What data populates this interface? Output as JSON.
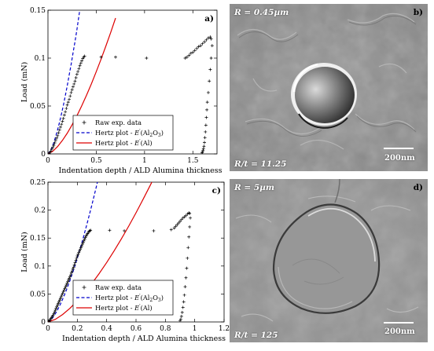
{
  "chart_data": [
    {
      "type": "scatter",
      "panel_label": "a)",
      "xlabel": "Indentation depth / ALD Alumina thickness",
      "ylabel": "Load (mN)",
      "xlim": [
        0,
        1.75
      ],
      "ylim": [
        0,
        0.15
      ],
      "xticks": [
        0,
        0.5,
        1,
        1.5
      ],
      "yticks": [
        0,
        0.05,
        0.1,
        0.15
      ],
      "ytick_labels": [
        "0",
        "0.05",
        "0.1",
        "0.15"
      ],
      "grid": false,
      "legend_position": "bottom-center",
      "series": [
        {
          "name": "Raw exp. data",
          "style": "plus-markers",
          "color": "#000000",
          "x": [
            0.01,
            0.02,
            0.03,
            0.04,
            0.05,
            0.06,
            0.07,
            0.08,
            0.09,
            0.1,
            0.11,
            0.12,
            0.13,
            0.14,
            0.15,
            0.16,
            0.17,
            0.18,
            0.19,
            0.2,
            0.21,
            0.22,
            0.23,
            0.24,
            0.25,
            0.26,
            0.27,
            0.28,
            0.29,
            0.3,
            0.31,
            0.32,
            0.33,
            0.34,
            0.35,
            0.36,
            0.37,
            0.38,
            0.55,
            0.7,
            1.02,
            1.42,
            1.44,
            1.46,
            1.48,
            1.5,
            1.52,
            1.54,
            1.56,
            1.58,
            1.6,
            1.62,
            1.64,
            1.66,
            1.68,
            1.69,
            1.7,
            1.69,
            1.68,
            1.67,
            1.66,
            1.65,
            1.645,
            1.64,
            1.635,
            1.63,
            1.625,
            1.62,
            1.615,
            1.61,
            1.605,
            1.6,
            1.595
          ],
          "y": [
            0.0005,
            0.0015,
            0.003,
            0.005,
            0.007,
            0.009,
            0.0115,
            0.014,
            0.0165,
            0.019,
            0.022,
            0.025,
            0.028,
            0.031,
            0.034,
            0.037,
            0.0405,
            0.044,
            0.0475,
            0.051,
            0.054,
            0.057,
            0.0605,
            0.064,
            0.067,
            0.07,
            0.073,
            0.076,
            0.0795,
            0.083,
            0.086,
            0.089,
            0.092,
            0.0945,
            0.097,
            0.0995,
            0.101,
            0.102,
            0.101,
            0.101,
            0.1,
            0.1,
            0.101,
            0.103,
            0.105,
            0.106,
            0.108,
            0.11,
            0.112,
            0.113,
            0.115,
            0.117,
            0.119,
            0.121,
            0.122,
            0.12,
            0.113,
            0.1,
            0.088,
            0.076,
            0.064,
            0.054,
            0.046,
            0.038,
            0.03,
            0.023,
            0.017,
            0.012,
            0.008,
            0.0055,
            0.0035,
            0.002,
            0.001
          ]
        },
        {
          "name": "Hertz plot - E'(Al2O3)",
          "legend_rich": [
            "Hertz plot - ",
            "E",
            "′",
            "(Al",
            "2",
            "O",
            "3",
            ")"
          ],
          "style": "dashed-line",
          "color": "#0000cc",
          "x": [
            0,
            0.02,
            0.04,
            0.06,
            0.08,
            0.1,
            0.12,
            0.14,
            0.16,
            0.18,
            0.2,
            0.22,
            0.24,
            0.26,
            0.28,
            0.3,
            0.32,
            0.33
          ],
          "y": [
            0,
            0.00027,
            0.00075,
            0.00138,
            0.00213,
            0.00297,
            0.0039,
            0.00492,
            0.00601,
            0.00717,
            0.0084,
            0.0097,
            0.011,
            0.0124,
            0.0138,
            0.0153,
            0.0169,
            0.0177
          ],
          "y_scale": 8.5
        },
        {
          "name": "Hertz plot - E'(Al)",
          "legend_rich": [
            "Hertz plot - ",
            "E",
            "′",
            "(Al)"
          ],
          "style": "solid-line",
          "color": "#dd0000",
          "x": [
            0,
            0.05,
            0.1,
            0.15,
            0.2,
            0.25,
            0.3,
            0.35,
            0.4,
            0.45,
            0.5,
            0.55,
            0.6,
            0.65,
            0.7
          ],
          "y": [
            0,
            0.0027,
            0.0077,
            0.0141,
            0.0217,
            0.0304,
            0.0399,
            0.0503,
            0.0614,
            0.0733,
            0.0858,
            0.099,
            0.1127,
            0.127,
            0.1418
          ]
        }
      ]
    },
    {
      "type": "scatter",
      "panel_label": "c)",
      "xlabel": "Indentation depth / ALD Alumina thickness",
      "ylabel": "Load (mN)",
      "xlim": [
        0,
        1.2
      ],
      "ylim": [
        0,
        0.25
      ],
      "xticks": [
        0,
        0.2,
        0.4,
        0.6,
        0.8,
        1,
        1.2
      ],
      "yticks": [
        0,
        0.05,
        0.1,
        0.15,
        0.2,
        0.25
      ],
      "ytick_labels": [
        "0",
        "0.05",
        "0.1",
        "0.15",
        "0.2",
        "0.25"
      ],
      "grid": false,
      "legend_position": "bottom-left",
      "series": [
        {
          "name": "Raw exp. data",
          "style": "plus-markers",
          "color": "#000000",
          "x": [
            0.005,
            0.01,
            0.015,
            0.02,
            0.025,
            0.03,
            0.035,
            0.04,
            0.045,
            0.05,
            0.055,
            0.06,
            0.065,
            0.07,
            0.075,
            0.08,
            0.085,
            0.09,
            0.095,
            0.1,
            0.105,
            0.11,
            0.115,
            0.12,
            0.125,
            0.13,
            0.135,
            0.14,
            0.145,
            0.15,
            0.155,
            0.16,
            0.165,
            0.17,
            0.175,
            0.18,
            0.185,
            0.19,
            0.195,
            0.2,
            0.205,
            0.21,
            0.215,
            0.22,
            0.225,
            0.23,
            0.235,
            0.24,
            0.245,
            0.25,
            0.255,
            0.26,
            0.265,
            0.27,
            0.275,
            0.28,
            0.285,
            0.29,
            0.42,
            0.52,
            0.72,
            0.84,
            0.86,
            0.87,
            0.88,
            0.89,
            0.9,
            0.91,
            0.92,
            0.93,
            0.94,
            0.95,
            0.96,
            0.965,
            0.97,
            0.965,
            0.96,
            0.955,
            0.95,
            0.945,
            0.94,
            0.935,
            0.93,
            0.925,
            0.92,
            0.915,
            0.91,
            0.905,
            0.9
          ],
          "y": [
            0.001,
            0.002,
            0.004,
            0.006,
            0.008,
            0.01,
            0.012,
            0.015,
            0.018,
            0.021,
            0.024,
            0.027,
            0.03,
            0.033,
            0.036,
            0.039,
            0.042,
            0.045,
            0.048,
            0.051,
            0.054,
            0.057,
            0.06,
            0.063,
            0.066,
            0.069,
            0.072,
            0.075,
            0.078,
            0.081,
            0.084,
            0.088,
            0.091,
            0.095,
            0.098,
            0.102,
            0.106,
            0.11,
            0.114,
            0.118,
            0.121,
            0.124,
            0.127,
            0.13,
            0.133,
            0.136,
            0.139,
            0.142,
            0.145,
            0.148,
            0.151,
            0.154,
            0.156,
            0.158,
            0.16,
            0.162,
            0.163,
            0.164,
            0.164,
            0.163,
            0.163,
            0.165,
            0.168,
            0.171,
            0.174,
            0.177,
            0.18,
            0.183,
            0.186,
            0.188,
            0.19,
            0.193,
            0.195,
            0.194,
            0.186,
            0.17,
            0.152,
            0.133,
            0.114,
            0.096,
            0.079,
            0.063,
            0.048,
            0.036,
            0.026,
            0.017,
            0.01,
            0.005,
            0.002
          ]
        },
        {
          "name": "Hertz plot - E'(Al2O3)",
          "legend_rich": [
            "Hertz plot - ",
            "E",
            "′",
            "(Al",
            "2",
            "O",
            "3",
            ")"
          ],
          "style": "dashed-line",
          "color": "#0000cc",
          "x": [
            0,
            0.03,
            0.06,
            0.09,
            0.12,
            0.15,
            0.18,
            0.21,
            0.24,
            0.27,
            0.3,
            0.33,
            0.35
          ],
          "y": [
            0,
            0.0066,
            0.0188,
            0.0345,
            0.0531,
            0.0742,
            0.0975,
            0.1229,
            0.1502,
            0.1793,
            0.21,
            0.2423,
            0.2647
          ]
        },
        {
          "name": "Hertz plot - E'(Al)",
          "legend_rich": [
            "Hertz plot - ",
            "E",
            "′",
            "(Al)"
          ],
          "style": "solid-line",
          "color": "#dd0000",
          "x": [
            0,
            0.05,
            0.1,
            0.15,
            0.2,
            0.25,
            0.3,
            0.35,
            0.4,
            0.45,
            0.5,
            0.55,
            0.6,
            0.65,
            0.7,
            0.75
          ],
          "y": [
            0,
            0.0047,
            0.0133,
            0.0244,
            0.0376,
            0.0525,
            0.069,
            0.087,
            0.1063,
            0.1268,
            0.1485,
            0.1713,
            0.1952,
            0.2202,
            0.2461,
            0.273
          ]
        }
      ]
    }
  ],
  "micrographs": {
    "b": {
      "panel_label": "b)",
      "radius_label": "R = 0.45µm",
      "ratio_label": "R/t = 11.25",
      "scale_label": "200nm"
    },
    "d": {
      "panel_label": "d)",
      "radius_label": "R = 5µm",
      "ratio_label": "R/t = 125",
      "scale_label": "200nm"
    }
  }
}
